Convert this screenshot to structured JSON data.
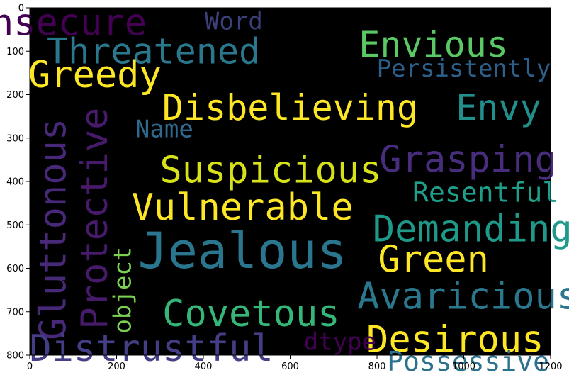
{
  "chart_data": {
    "type": "wordcloud",
    "background_color": "#000000",
    "colormap": "viridis",
    "xlim": [
      0,
      1200
    ],
    "ylim": [
      800,
      0
    ],
    "x_ticks": [
      0,
      200,
      400,
      600,
      800,
      1000,
      1200
    ],
    "y_ticks": [
      0,
      100,
      200,
      300,
      400,
      500,
      600,
      700,
      800
    ],
    "words": [
      {
        "text": "Insecure",
        "x": 65,
        "y": 35,
        "size": 52,
        "rotate": 0,
        "color": "#440154"
      },
      {
        "text": "Word",
        "x": 470,
        "y": 32,
        "size": 34,
        "rotate": 0,
        "color": "#3b3f7a"
      },
      {
        "text": "Threatened",
        "x": 285,
        "y": 100,
        "size": 50,
        "rotate": 0,
        "color": "#2a788e"
      },
      {
        "text": "Envious",
        "x": 930,
        "y": 85,
        "size": 50,
        "rotate": 0,
        "color": "#5ac864"
      },
      {
        "text": "Persistently",
        "x": 1000,
        "y": 140,
        "size": 34,
        "rotate": 0,
        "color": "#2c5f8a"
      },
      {
        "text": "Greedy",
        "x": 150,
        "y": 155,
        "size": 52,
        "rotate": 0,
        "color": "#fde725"
      },
      {
        "text": "Disbelieving",
        "x": 600,
        "y": 230,
        "size": 50,
        "rotate": 0,
        "color": "#fde725"
      },
      {
        "text": "Envy",
        "x": 1080,
        "y": 230,
        "size": 50,
        "rotate": 0,
        "color": "#21908c"
      },
      {
        "text": "Name",
        "x": 310,
        "y": 280,
        "size": 34,
        "rotate": 0,
        "color": "#31688e"
      },
      {
        "text": "Gluttonous",
        "x": 55,
        "y": 510,
        "size": 52,
        "rotate": -90,
        "color": "#482878"
      },
      {
        "text": "Protective",
        "x": 150,
        "y": 485,
        "size": 52,
        "rotate": -90,
        "color": "#481a6c"
      },
      {
        "text": "Grasping",
        "x": 1010,
        "y": 350,
        "size": 52,
        "rotate": 0,
        "color": "#472d7b"
      },
      {
        "text": "Suspicious",
        "x": 555,
        "y": 375,
        "size": 52,
        "rotate": 0,
        "color": "#d8e219"
      },
      {
        "text": "Resentful",
        "x": 1050,
        "y": 425,
        "size": 38,
        "rotate": 0,
        "color": "#1f9e89"
      },
      {
        "text": "Vulnerable",
        "x": 490,
        "y": 460,
        "size": 52,
        "rotate": 0,
        "color": "#fde725"
      },
      {
        "text": "Demanding",
        "x": 1020,
        "y": 510,
        "size": 52,
        "rotate": 0,
        "color": "#1f9a8a"
      },
      {
        "text": "Jealous",
        "x": 490,
        "y": 560,
        "size": 70,
        "rotate": 0,
        "color": "#2a768e"
      },
      {
        "text": "Green",
        "x": 930,
        "y": 580,
        "size": 52,
        "rotate": 0,
        "color": "#fde725"
      },
      {
        "text": "object",
        "x": 215,
        "y": 650,
        "size": 34,
        "rotate": -90,
        "color": "#7ad151"
      },
      {
        "text": "Avaricious",
        "x": 1010,
        "y": 665,
        "size": 52,
        "rotate": 0,
        "color": "#2a788e"
      },
      {
        "text": "Covetous",
        "x": 510,
        "y": 705,
        "size": 52,
        "rotate": 0,
        "color": "#35b779"
      },
      {
        "text": "Desirous",
        "x": 980,
        "y": 765,
        "size": 52,
        "rotate": 0,
        "color": "#fde725"
      },
      {
        "text": "dtype",
        "x": 715,
        "y": 770,
        "size": 34,
        "rotate": 0,
        "color": "#440154"
      },
      {
        "text": "Distrustful",
        "x": 280,
        "y": 785,
        "size": 52,
        "rotate": 0,
        "color": "#433e85"
      },
      {
        "text": "Possessive",
        "x": 1010,
        "y": 815,
        "size": 38,
        "rotate": 0,
        "color": "#2c728e"
      }
    ]
  }
}
